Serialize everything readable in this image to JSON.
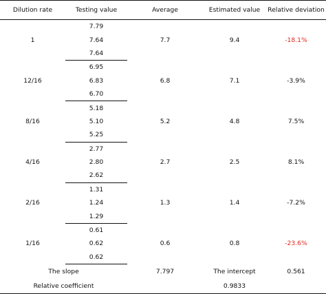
{
  "headers": [
    "Dilution rate",
    "Testing value",
    "Average",
    "Estimated value",
    "Relative deviation"
  ],
  "rows": [
    {
      "dilution": "1",
      "testing": [
        "7.79",
        "7.64",
        "7.64"
      ],
      "average": "7.7",
      "estimated": "9.4",
      "deviation": "-18.1%",
      "deviation_highlight": true
    },
    {
      "dilution": "12/16",
      "testing": [
        "6.95",
        "6.83",
        "6.70"
      ],
      "average": "6.8",
      "estimated": "7.1",
      "deviation": "-3.9%",
      "deviation_highlight": false
    },
    {
      "dilution": "8/16",
      "testing": [
        "5.18",
        "5.10",
        "5.25"
      ],
      "average": "5.2",
      "estimated": "4.8",
      "deviation": "7.5%",
      "deviation_highlight": false
    },
    {
      "dilution": "4/16",
      "testing": [
        "2.77",
        "2.80",
        "2.62"
      ],
      "average": "2.7",
      "estimated": "2.5",
      "deviation": "8.1%",
      "deviation_highlight": false
    },
    {
      "dilution": "2/16",
      "testing": [
        "1.31",
        "1.24",
        "1.29"
      ],
      "average": "1.3",
      "estimated": "1.4",
      "deviation": "-7.2%",
      "deviation_highlight": false
    },
    {
      "dilution": "1/16",
      "testing": [
        "0.61",
        "0.62",
        "0.62"
      ],
      "average": "0.6",
      "estimated": "0.8",
      "deviation": "-23.6%",
      "deviation_highlight": true
    }
  ],
  "footer": {
    "slope_label": "The slope",
    "slope_value": "7.797",
    "intercept_label": "The intercept",
    "intercept_value": "0.561",
    "coefficient_label": "Relative coefficient",
    "coefficient_value": "0.9833"
  },
  "colors": {
    "highlight": "#e0261f",
    "text": "#111111",
    "rule": "#111111"
  }
}
